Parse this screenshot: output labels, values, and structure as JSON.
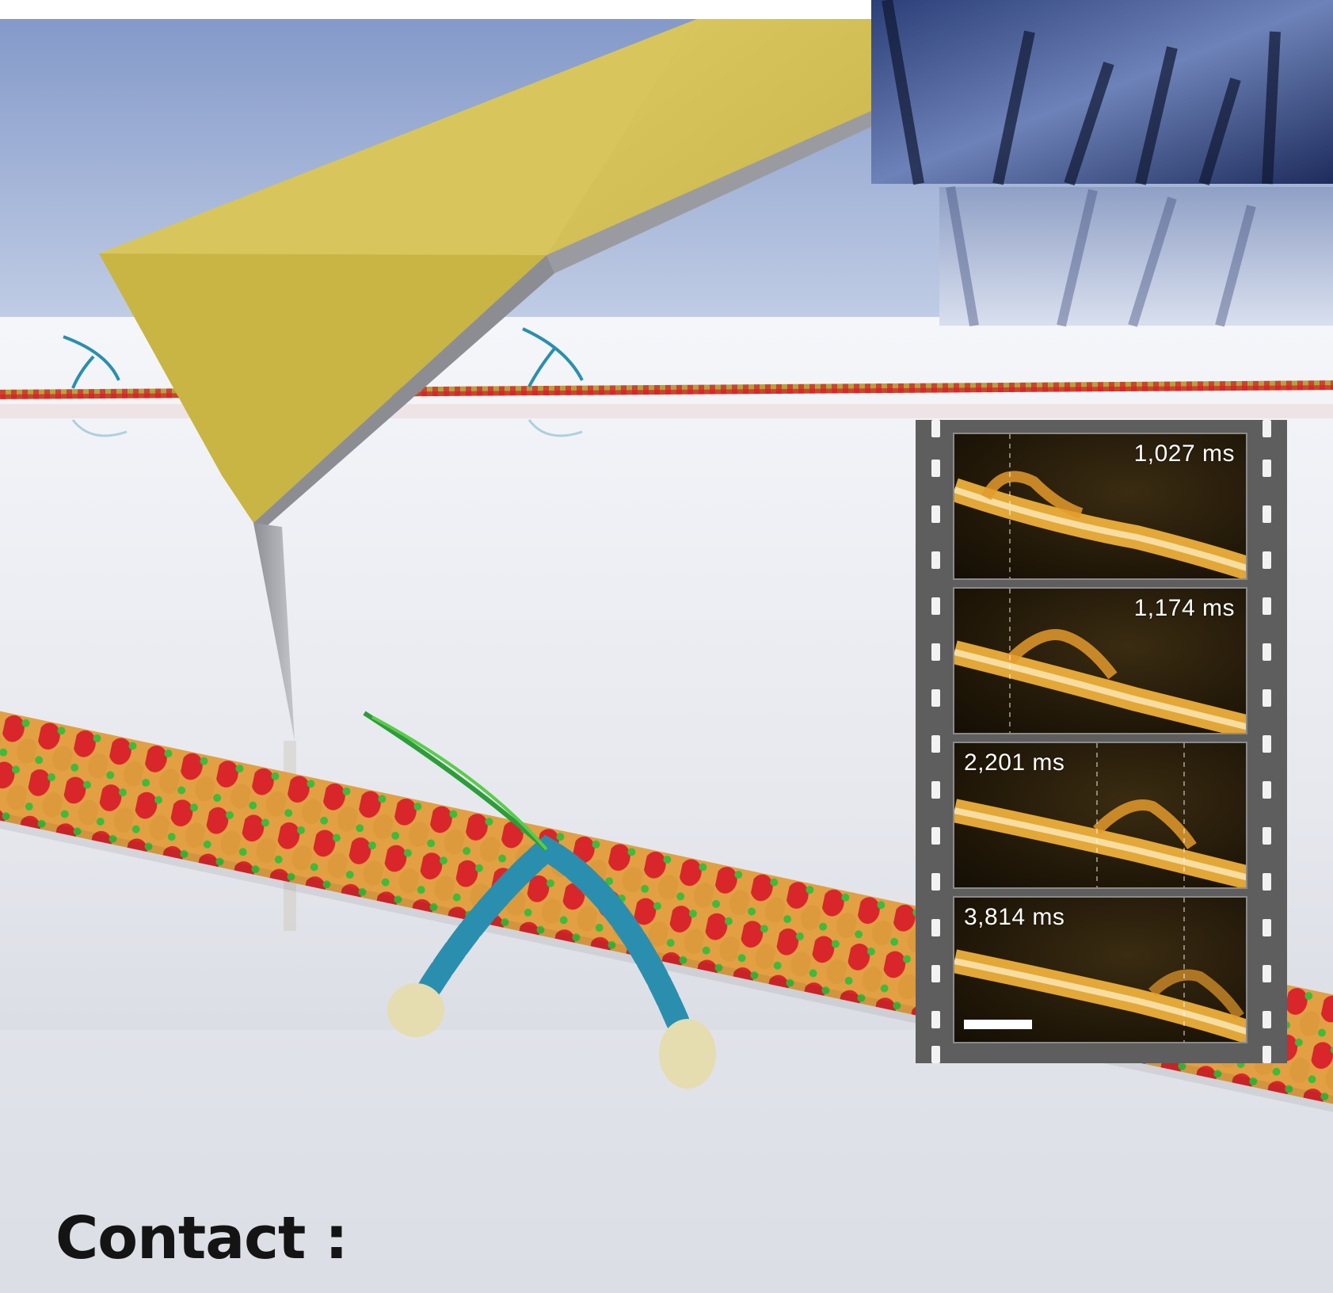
{
  "filmstrip": {
    "frames": [
      {
        "timestamp": "1,027 ms",
        "position": "top-right"
      },
      {
        "timestamp": "1,174 ms",
        "position": "top-right"
      },
      {
        "timestamp": "2,201 ms",
        "position": "top-left"
      },
      {
        "timestamp": "3,814 ms",
        "position": "top-left"
      }
    ],
    "has_scale_bar": true
  },
  "heading": "Contact :",
  "colors": {
    "cantilever": "#d9c35a",
    "actin_red": "#d8262b",
    "actin_orange": "#e2a043",
    "atp_green": "#3dbb3b",
    "myosin_blue": "#2a8fae",
    "afm_gold": "#f5b53a"
  }
}
